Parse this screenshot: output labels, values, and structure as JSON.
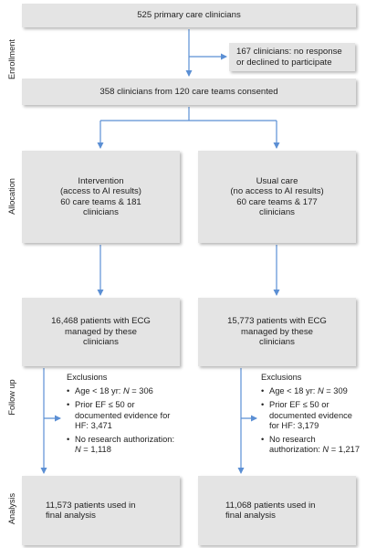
{
  "stages": {
    "enrollment": "Enrollment",
    "allocation": "Allocation",
    "follow_up": "Follow up",
    "analysis": "Analysis"
  },
  "boxes": {
    "primary": "525 primary care clinicians",
    "declined": "167 clinicians: no response\nor declined to participate",
    "consented": "358 clinicians from 120 care teams consented",
    "intervention": "Intervention\n(access to AI results)\n60 care teams & 181\nclinicians",
    "usual_care": "Usual care\n(no access to AI results)\n60 care teams & 177\nclinicians",
    "patients_intervention": "16,468 patients with ECG\nmanaged by these\nclinicians",
    "patients_usual": "15,773 patients with ECG\nmanaged by these\nclinicians",
    "final_intervention": "11,573 patients used in\nfinal analysis",
    "final_usual": "11,068 patients used in\nfinal analysis"
  },
  "exclusions_left": {
    "title": "Exclusions",
    "age_label": "Age < 18 yr: ",
    "age_value": " = 306",
    "ef_label": "Prior EF ≤ 50 or documented evidence for HF: ",
    "ef_value": "3,471",
    "auth_label": "No research authorization: ",
    "auth_value": " = 1,118",
    "n": "N"
  },
  "exclusions_right": {
    "title": "Exclusions",
    "age_label": "Age < 18 yr: ",
    "age_value": " = 309",
    "ef_label": "Prior EF ≤ 50 or documented evidence for HF: ",
    "ef_value": "3,179",
    "auth_label": "No research authorization: ",
    "auth_value": " = 1,217",
    "n": "N"
  },
  "colors": {
    "box": "#e4e4e4",
    "arrow": "#5b8fd4",
    "text": "#222222"
  }
}
